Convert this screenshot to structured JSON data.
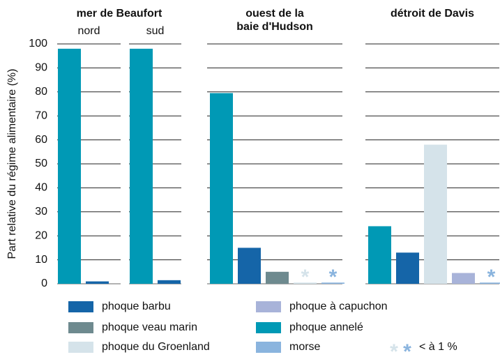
{
  "chart_data": {
    "type": "bar",
    "y_label": "Part relative du régime alimentaire (%)",
    "ylim": [
      0,
      100
    ],
    "yticks": [
      0,
      10,
      20,
      30,
      40,
      50,
      60,
      70,
      80,
      90,
      100
    ],
    "grid": true,
    "series": [
      {
        "name": "phoque barbu",
        "color": "#1565a8"
      },
      {
        "name": "phoque veau marin",
        "color": "#6e8a8f"
      },
      {
        "name": "phoque du Groenland",
        "color": "#d5e3ea"
      },
      {
        "name": "phoque à capuchon",
        "color": "#a8b3d9"
      },
      {
        "name": "phoque annelé",
        "color": "#0099b5"
      },
      {
        "name": "morse",
        "color": "#8ab4de"
      }
    ],
    "trace_label": "< à 1 %",
    "panels": [
      {
        "title": [
          "mer de Beaufort"
        ],
        "subpanels": [
          {
            "label": "nord",
            "bars": [
              {
                "series": 4,
                "value": 98
              },
              {
                "series": 0,
                "value": 1
              }
            ]
          },
          {
            "label": "sud",
            "bars": [
              {
                "series": 4,
                "value": 98
              },
              {
                "series": 0,
                "value": 1.5
              }
            ]
          }
        ]
      },
      {
        "title": [
          "ouest de la",
          "baie d'Hudson"
        ],
        "subpanels": [
          {
            "bars": [
              {
                "series": 4,
                "value": 79.5
              },
              {
                "series": 0,
                "value": 15
              },
              {
                "series": 1,
                "value": 5
              },
              {
                "series": 2,
                "value": 0.5,
                "value_label": "*"
              },
              {
                "series": 5,
                "value": 0.5,
                "value_label": "*"
              }
            ]
          }
        ]
      },
      {
        "title": [
          "détroit de Davis"
        ],
        "subpanels": [
          {
            "bars": [
              {
                "series": 4,
                "value": 24
              },
              {
                "series": 0,
                "value": 13
              },
              {
                "series": 2,
                "value": 58
              },
              {
                "series": 3,
                "value": 4.5
              },
              {
                "series": 5,
                "value": 0.5,
                "value_label": "*"
              }
            ]
          }
        ]
      }
    ]
  }
}
